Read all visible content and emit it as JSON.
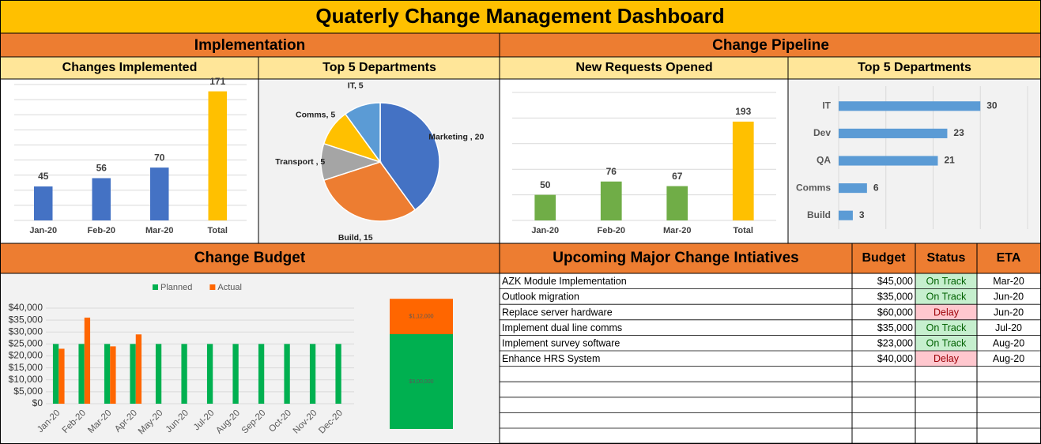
{
  "title": "Quaterly Change Management Dashboard",
  "sections": {
    "implementation": "Implementation",
    "pipeline": "Change Pipeline",
    "budget": "Change Budget"
  },
  "table": {
    "title": "Upcoming Major Change Intiatives",
    "columns": [
      "Budget",
      "Status",
      "ETA"
    ],
    "rows": [
      [
        "AZK Module Implementation",
        "$45,000",
        "On Track",
        "Mar-20"
      ],
      [
        "Outlook migration",
        "$35,000",
        "On Track",
        "Jun-20"
      ],
      [
        "Replace server hardware",
        "$60,000",
        "Delay",
        "Jun-20"
      ],
      [
        "Implement dual line comms",
        "$35,000",
        "On Track",
        "Jul-20"
      ],
      [
        "Implement survey software",
        "$23,000",
        "On Track",
        "Aug-20"
      ],
      [
        "Enhance HRS System",
        "$40,000",
        "Delay",
        "Aug-20"
      ]
    ],
    "status_fill": [
      "#C6EFCE",
      "#C6EFCE",
      "#FFC7CE",
      "#C6EFCE",
      "#C6EFCE",
      "#FFC7CE"
    ],
    "status_text_color": [
      "#006100",
      "#006100",
      "#9C0006",
      "#006100",
      "#006100",
      "#9C0006"
    ]
  },
  "chart_data": [
    {
      "type": "bar",
      "title": "Changes Implemented",
      "categories": [
        "Jan-20",
        "Feb-20",
        "Mar-20",
        "Total"
      ],
      "values": [
        45,
        56,
        70,
        171
      ],
      "colors": [
        "#4472C4",
        "#4472C4",
        "#4472C4",
        "#FFC000"
      ],
      "ylim": [
        0,
        180
      ],
      "yticks": [
        0,
        20,
        40,
        60,
        80,
        100,
        120,
        140,
        160,
        180
      ],
      "grid": true,
      "data_labels": true
    },
    {
      "type": "pie",
      "title": "Top 5 Departments",
      "values": [
        20,
        15,
        5,
        5,
        5
      ],
      "value_labels": [
        "Marketing , 20",
        "Build, 15",
        "Transport , 5",
        "Comms, 5",
        "IT, 5"
      ],
      "colors": [
        "#4472C4",
        "#ED7D31",
        "#A5A5A5",
        "#FFC000",
        "#5B9BD5"
      ]
    },
    {
      "type": "bar",
      "title": "New Requests Opened",
      "categories": [
        "Jan-20",
        "Feb-20",
        "Mar-20",
        "Total"
      ],
      "values": [
        50,
        76,
        67,
        193
      ],
      "colors": [
        "#70AD47",
        "#70AD47",
        "#70AD47",
        "#FFC000"
      ],
      "ylim": [
        0,
        250
      ],
      "yticks": [
        0,
        50,
        100,
        150,
        200,
        250
      ],
      "grid": true,
      "data_labels": true
    },
    {
      "type": "bar",
      "title": "Top 5 Departments",
      "orientation": "horizontal",
      "categories": [
        "IT",
        "Dev",
        "QA",
        "Comms",
        "Build"
      ],
      "values": [
        30,
        23,
        21,
        6,
        3
      ],
      "color": "#5B9BD5",
      "xlim": [
        0,
        40
      ],
      "xticks": [
        0,
        10,
        20,
        30,
        40
      ],
      "grid": true,
      "data_labels": true
    },
    {
      "type": "bar",
      "categories": [
        "Jan-20",
        "Feb-20",
        "Mar-20",
        "Apr-20",
        "May-20",
        "Jun-20",
        "Jul-20",
        "Aug-20",
        "Sep-20",
        "Oct-20",
        "Nov-20",
        "Dec-20"
      ],
      "series": [
        {
          "name": "Planned",
          "color": "#00B050",
          "values": [
            25000,
            25000,
            25000,
            25000,
            25000,
            25000,
            25000,
            25000,
            25000,
            25000,
            25000,
            25000
          ]
        },
        {
          "name": "Actual",
          "color": "#FF6600",
          "values": [
            23000,
            36000,
            24000,
            29000,
            null,
            null,
            null,
            null,
            null,
            null,
            null,
            null
          ]
        }
      ],
      "ylim": [
        0,
        40000
      ],
      "yticks": [
        {
          "value": 0,
          "label": "$0"
        },
        {
          "value": 5000,
          "label": "$5,000"
        },
        {
          "value": 10000,
          "label": "$10,000"
        },
        {
          "value": 15000,
          "label": "$15,000"
        },
        {
          "value": 20000,
          "label": "$20,000"
        },
        {
          "value": 25000,
          "label": "$25,000"
        },
        {
          "value": 30000,
          "label": "$30,000"
        },
        {
          "value": 35000,
          "label": "$35,000"
        },
        {
          "value": 40000,
          "label": "$40,000"
        }
      ],
      "grid": true,
      "legend": "top",
      "x_label_rotation": -45
    },
    {
      "type": "bar",
      "stacked": true,
      "series": [
        {
          "color": "#00B050",
          "values": [
            300000
          ],
          "value_labels": [
            "$3,00,000"
          ]
        },
        {
          "color": "#FF6600",
          "values": [
            112000
          ],
          "value_labels": [
            "$1,12,000"
          ]
        }
      ],
      "ylim": [
        0,
        420000
      ],
      "data_labels": true
    }
  ]
}
